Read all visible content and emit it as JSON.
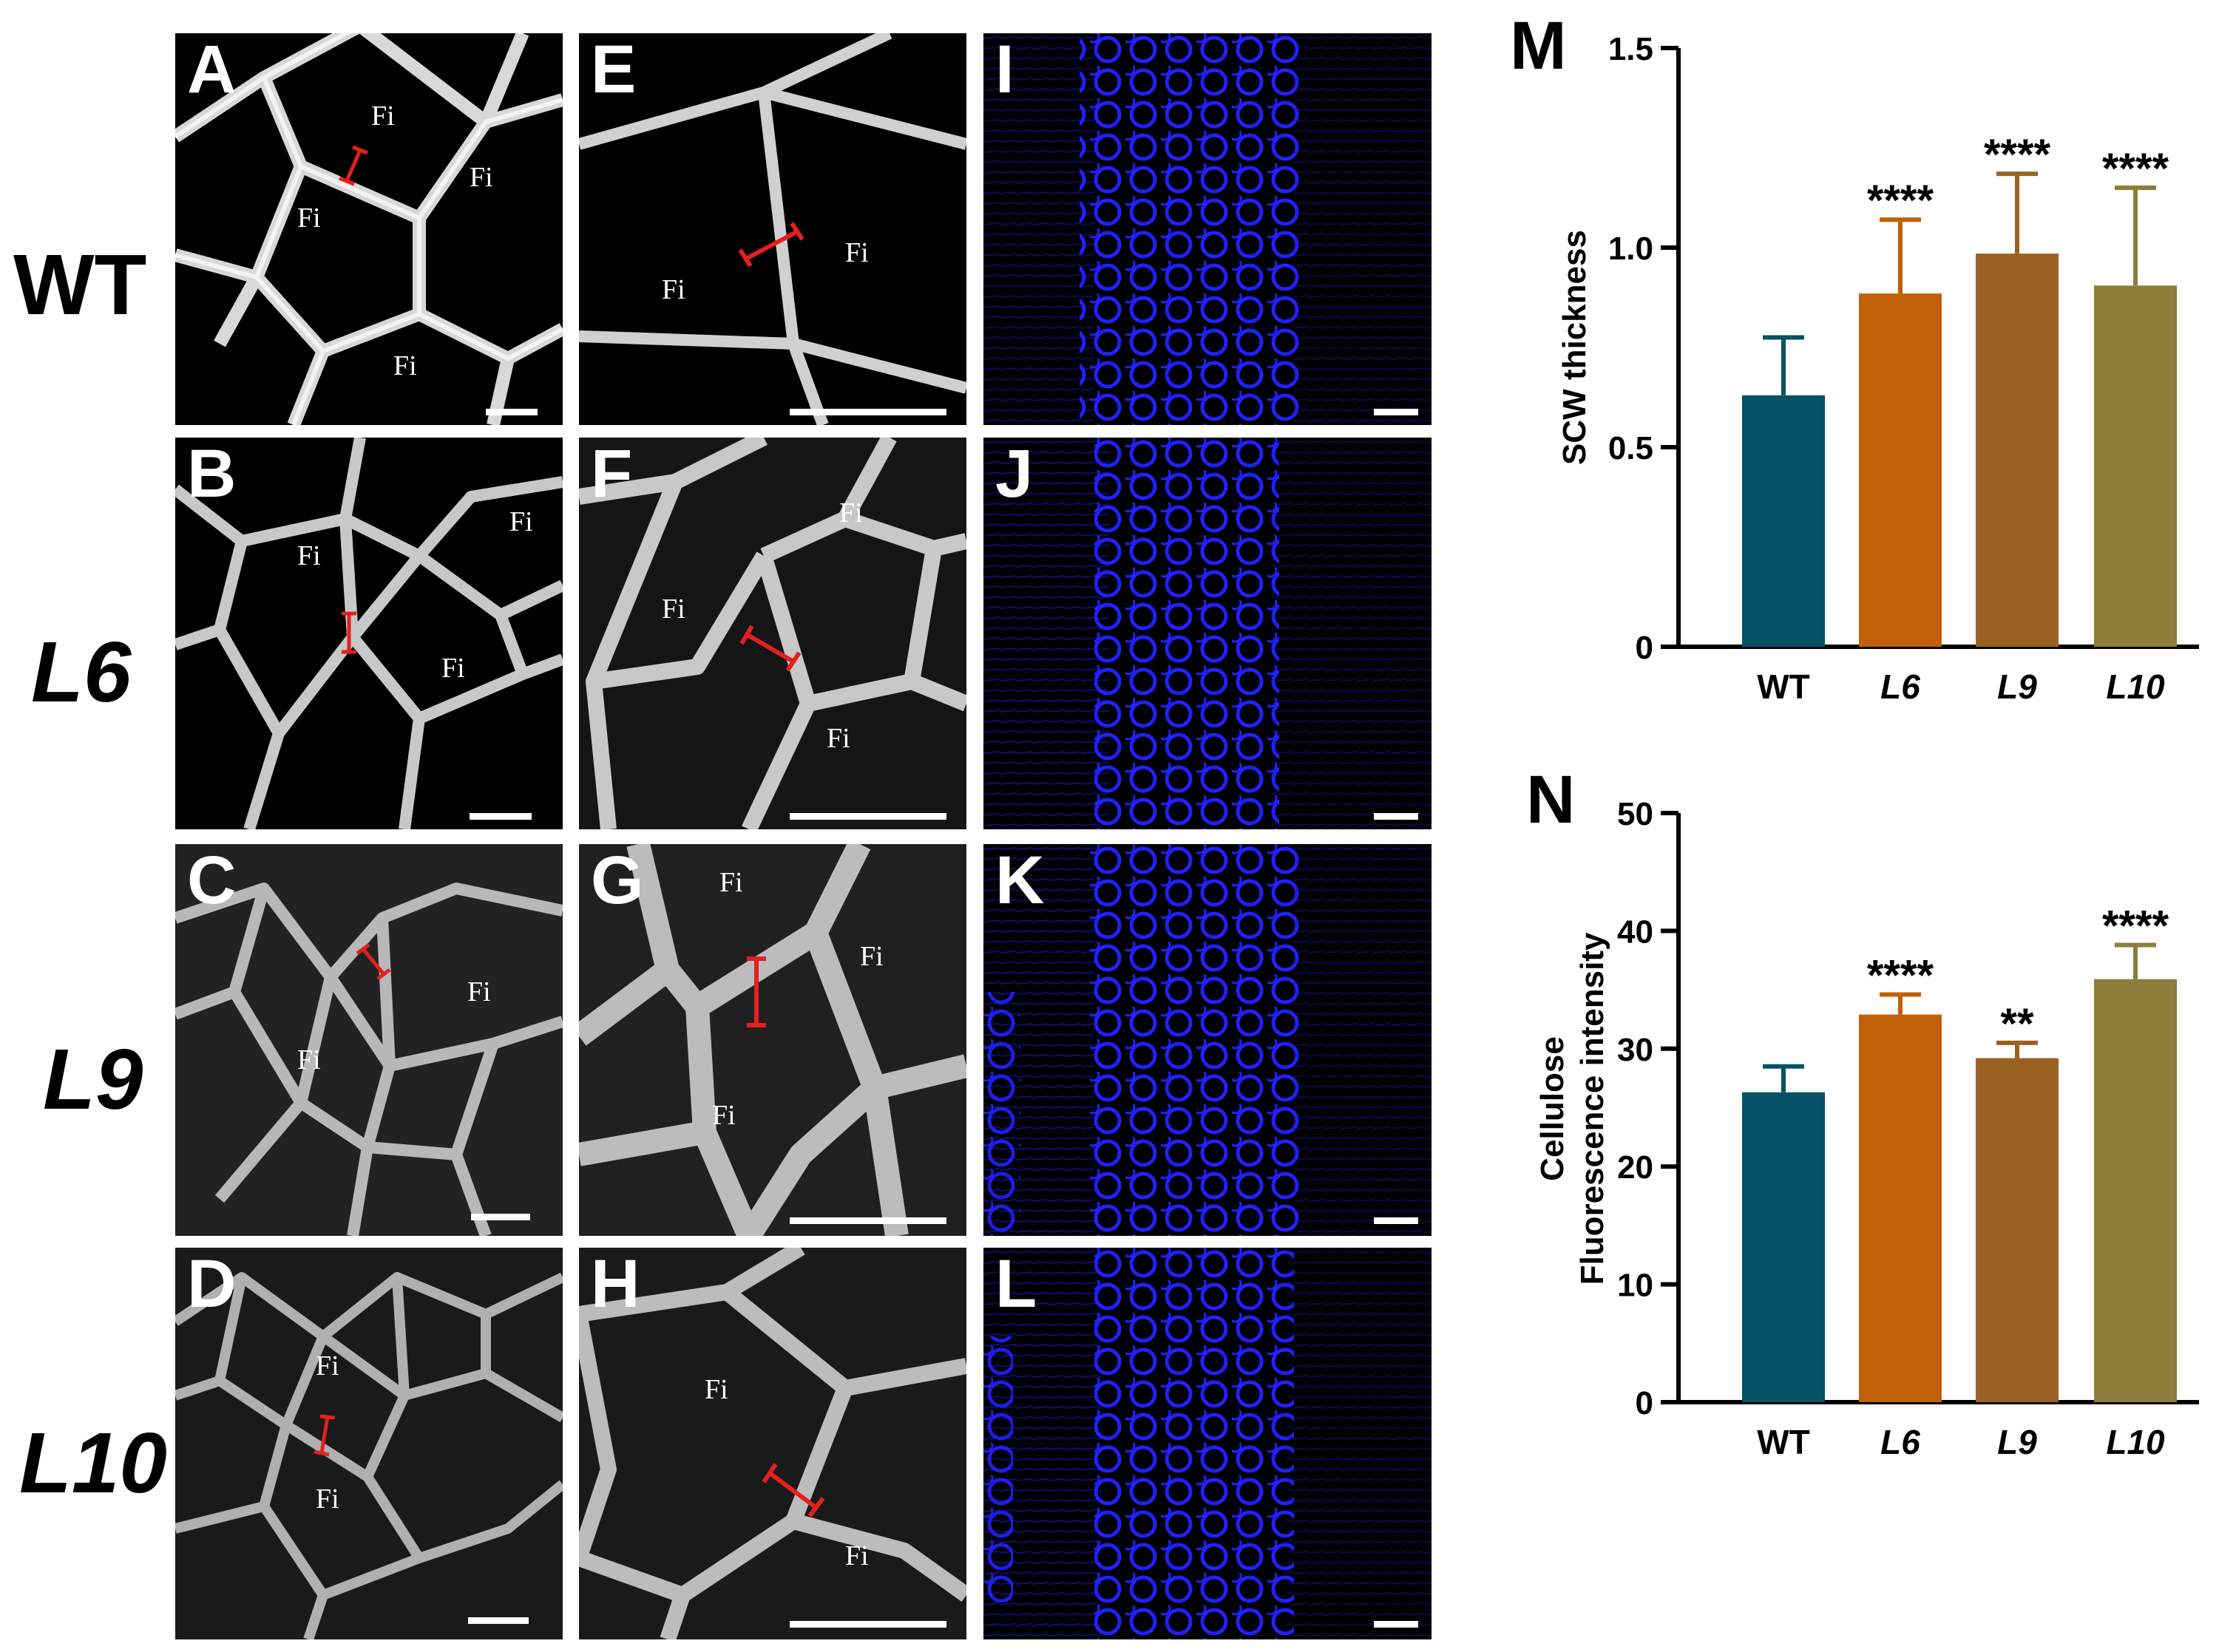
{
  "row_labels": [
    {
      "text": "WT",
      "italic": false
    },
    {
      "text": "L6",
      "italic": true
    },
    {
      "text": "L9",
      "italic": true
    },
    {
      "text": "L10",
      "italic": true
    }
  ],
  "panels": {
    "A": {
      "label": "A",
      "fi": [
        "Fi",
        "Fi",
        "Fi",
        "Fi"
      ]
    },
    "B": {
      "label": "B",
      "fi": [
        "Fi",
        "Fi",
        "Fi"
      ]
    },
    "C": {
      "label": "C",
      "fi": [
        "Fi",
        "Fi"
      ]
    },
    "D": {
      "label": "D",
      "fi": [
        "Fi",
        "Fi"
      ]
    },
    "E": {
      "label": "E",
      "fi": [
        "Fi",
        "Fi"
      ]
    },
    "F": {
      "label": "F",
      "fi": [
        "Fi",
        "Fi",
        "Fi"
      ]
    },
    "G": {
      "label": "G",
      "fi": [
        "Fi",
        "Fi",
        "Fi"
      ]
    },
    "H": {
      "label": "H",
      "fi": [
        "Fi",
        "Fi"
      ]
    },
    "I": {
      "label": "I"
    },
    "J": {
      "label": "J"
    },
    "K": {
      "label": "K"
    },
    "L": {
      "label": "L"
    }
  },
  "colors": {
    "WT": "#065265",
    "L6": "#C06009",
    "L9": "#9A6222",
    "L10": "#8C7D3B",
    "measure_bar": "#E3201E",
    "stain": "#1A1AF0"
  },
  "chart_data": [
    {
      "panel_label": "M",
      "type": "bar",
      "ylabel": "SCW thickness",
      "categories": [
        "WT",
        "L6",
        "L9",
        "L10"
      ],
      "italic_categories": [
        false,
        true,
        true,
        true
      ],
      "values": [
        0.63,
        0.885,
        0.985,
        0.905
      ],
      "errors": [
        0.145,
        0.185,
        0.2,
        0.245
      ],
      "significance": [
        "",
        "****",
        "****",
        "****"
      ],
      "ylim": [
        0,
        1.5
      ],
      "yticks": [
        0,
        0.5,
        1.0,
        1.5
      ],
      "ytick_labels": [
        "0",
        "0.5",
        "1.0",
        "1.5"
      ]
    },
    {
      "panel_label": "N",
      "type": "bar",
      "ylabel": "Cellulose Fluorescence intensity",
      "ylabel_lines": [
        "Cellulose",
        "Fluorescence intensity"
      ],
      "categories": [
        "WT",
        "L6",
        "L9",
        "L10"
      ],
      "italic_categories": [
        false,
        true,
        true,
        true
      ],
      "values": [
        26.3,
        32.9,
        29.2,
        35.9
      ],
      "errors": [
        2.2,
        1.7,
        1.3,
        2.9
      ],
      "significance": [
        "",
        "****",
        "**",
        "****"
      ],
      "ylim": [
        0,
        50
      ],
      "yticks": [
        0,
        10,
        20,
        30,
        40,
        50
      ],
      "ytick_labels": [
        "0",
        "10",
        "20",
        "30",
        "40",
        "50"
      ]
    }
  ]
}
